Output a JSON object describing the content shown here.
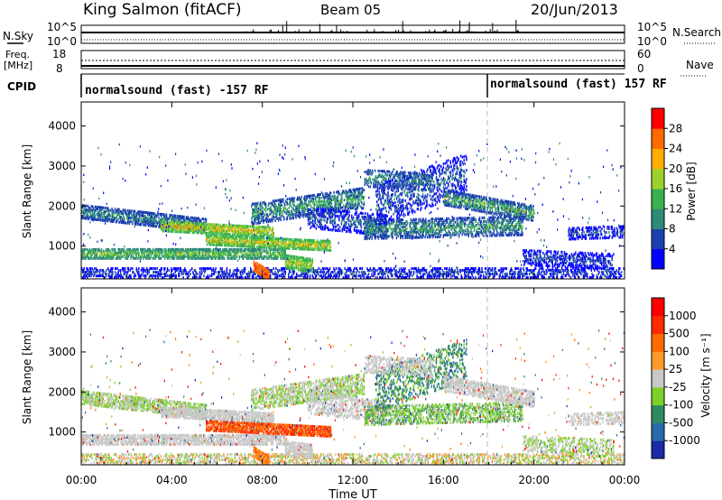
{
  "header": {
    "station": "King Salmon (fitACF)",
    "beam": "Beam 05",
    "date": "20/Jun/2013"
  },
  "strip_labels": {
    "nsky": "N.Sky",
    "nsearch": "N.Search",
    "freq_line1": "Freq.",
    "freq_line2": "[MHz]",
    "nave": "Nave",
    "cpid": "CPID",
    "nsky_top": "10^5",
    "nsky_bottom": "10^0",
    "freq_top": "18",
    "freq_bottom": "8",
    "nave_top": "60",
    "nave_bottom": "0"
  },
  "cpid_segments": [
    {
      "label": "normalsound (fast) -157 RF",
      "start": "00:00"
    },
    {
      "label": "normalsound (fast) 157 RF",
      "start": "18:00"
    }
  ],
  "chart_data": [
    {
      "type": "heatmap",
      "name": "power",
      "xlabel": "",
      "ylabel": "Slant Range [km]",
      "x_ticks": [
        "00:00",
        "04:00",
        "08:00",
        "12:00",
        "16:00",
        "20:00",
        "00:00"
      ],
      "x_range_hours": [
        0,
        24
      ],
      "y_ticks": [
        "1000",
        "2000",
        "3000",
        "4000"
      ],
      "y_range_km": [
        180,
        4600
      ],
      "colorbar": {
        "label": "Power [dB]",
        "ticks": [
          "4",
          "8",
          "12",
          "16",
          "20",
          "24",
          "28"
        ],
        "colors": [
          "#0000ff",
          "#1c3fb0",
          "#2f8a7a",
          "#38b24f",
          "#9cd12a",
          "#ffae00",
          "#ff6a00",
          "#ff0000"
        ]
      }
    },
    {
      "type": "heatmap",
      "name": "velocity",
      "xlabel": "Time UT",
      "ylabel": "Slant Range [km]",
      "x_ticks": [
        "00:00",
        "04:00",
        "08:00",
        "12:00",
        "16:00",
        "20:00",
        "00:00"
      ],
      "x_range_hours": [
        0,
        24
      ],
      "y_ticks": [
        "1000",
        "2000",
        "3000",
        "4000"
      ],
      "y_range_km": [
        180,
        4600
      ],
      "colorbar": {
        "label": "Velocity [m s⁻¹]",
        "ticks": [
          "1000",
          "500",
          "100",
          "25",
          "-25",
          "-100",
          "-500",
          "-1000"
        ],
        "colors": [
          "#1a2aa8",
          "#2a6aa8",
          "#2f8a62",
          "#7cd12a",
          "#c8c8c8",
          "#ff9a2a",
          "#ff6a00",
          "#ff2a00",
          "#ff0000"
        ]
      }
    }
  ]
}
